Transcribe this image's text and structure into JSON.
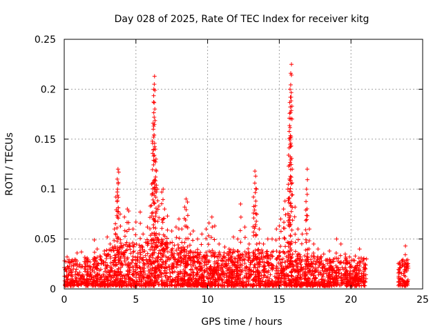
{
  "chart_data": {
    "type": "scatter",
    "title": "Day 028 of 2025, Rate Of TEC Index for receiver kitg",
    "xlabel": "GPS time / hours",
    "ylabel": "ROTI / TECUs",
    "xlim": [
      0,
      25
    ],
    "ylim": [
      0,
      0.25
    ],
    "xticks": [
      "0",
      "5",
      "10",
      "15",
      "20",
      "25"
    ],
    "yticks": [
      "0",
      "0.05",
      "0.1",
      "0.15",
      "0.2",
      "0.25"
    ],
    "grid": true,
    "marker": "+",
    "color": "#ff0000",
    "coverage": [
      [
        0,
        21.1
      ],
      [
        23.3,
        24.0
      ]
    ],
    "series": [
      {
        "name": "ROTI",
        "points": [
          [
            0.2,
            0.032
          ],
          [
            0.5,
            0.028
          ],
          [
            0.9,
            0.036
          ],
          [
            1.2,
            0.037
          ],
          [
            1.6,
            0.031
          ],
          [
            2.1,
            0.049
          ],
          [
            2.3,
            0.04
          ],
          [
            2.8,
            0.038
          ],
          [
            3.0,
            0.052
          ],
          [
            3.2,
            0.045
          ],
          [
            3.5,
            0.06
          ],
          [
            3.6,
            0.092
          ],
          [
            3.7,
            0.11
          ],
          [
            3.75,
            0.12
          ],
          [
            3.8,
            0.117
          ],
          [
            3.72,
            0.1
          ],
          [
            3.9,
            0.075
          ],
          [
            4.2,
            0.072
          ],
          [
            4.4,
            0.08
          ],
          [
            4.5,
            0.078
          ],
          [
            4.8,
            0.06
          ],
          [
            5.0,
            0.067
          ],
          [
            5.3,
            0.077
          ],
          [
            5.5,
            0.055
          ],
          [
            5.8,
            0.062
          ],
          [
            6.0,
            0.083
          ],
          [
            6.1,
            0.105
          ],
          [
            6.15,
            0.148
          ],
          [
            6.2,
            0.166
          ],
          [
            6.25,
            0.2
          ],
          [
            6.3,
            0.213
          ],
          [
            6.28,
            0.205
          ],
          [
            6.35,
            0.14
          ],
          [
            6.4,
            0.13
          ],
          [
            6.42,
            0.118
          ],
          [
            6.5,
            0.1
          ],
          [
            6.6,
            0.083
          ],
          [
            6.8,
            0.097
          ],
          [
            6.9,
            0.1
          ],
          [
            7.0,
            0.08
          ],
          [
            7.2,
            0.073
          ],
          [
            7.5,
            0.058
          ],
          [
            7.8,
            0.062
          ],
          [
            8.0,
            0.07
          ],
          [
            8.2,
            0.06
          ],
          [
            8.4,
            0.082
          ],
          [
            8.5,
            0.09
          ],
          [
            8.6,
            0.087
          ],
          [
            8.8,
            0.055
          ],
          [
            9.0,
            0.058
          ],
          [
            9.3,
            0.05
          ],
          [
            9.6,
            0.055
          ],
          [
            9.9,
            0.06
          ],
          [
            10.1,
            0.066
          ],
          [
            10.3,
            0.072
          ],
          [
            10.5,
            0.063
          ],
          [
            10.8,
            0.045
          ],
          [
            11.2,
            0.042
          ],
          [
            11.5,
            0.04
          ],
          [
            11.8,
            0.052
          ],
          [
            12.1,
            0.05
          ],
          [
            12.3,
            0.085
          ],
          [
            12.6,
            0.062
          ],
          [
            12.9,
            0.045
          ],
          [
            13.2,
            0.092
          ],
          [
            13.3,
            0.118
          ],
          [
            13.35,
            0.113
          ],
          [
            13.4,
            0.1
          ],
          [
            13.2,
            0.076
          ],
          [
            13.6,
            0.06
          ],
          [
            13.9,
            0.045
          ],
          [
            14.2,
            0.05
          ],
          [
            14.5,
            0.05
          ],
          [
            14.8,
            0.06
          ],
          [
            15.0,
            0.063
          ],
          [
            15.1,
            0.07
          ],
          [
            15.3,
            0.08
          ],
          [
            15.4,
            0.088
          ],
          [
            15.6,
            0.1
          ],
          [
            15.65,
            0.134
          ],
          [
            15.7,
            0.171
          ],
          [
            15.75,
            0.2
          ],
          [
            15.8,
            0.216
          ],
          [
            15.85,
            0.225
          ],
          [
            15.78,
            0.192
          ],
          [
            15.9,
            0.12
          ],
          [
            16.1,
            0.082
          ],
          [
            16.3,
            0.06
          ],
          [
            16.6,
            0.055
          ],
          [
            16.85,
            0.079
          ],
          [
            16.9,
            0.1
          ],
          [
            16.95,
            0.12
          ],
          [
            17.1,
            0.06
          ],
          [
            17.4,
            0.045
          ],
          [
            17.7,
            0.04
          ],
          [
            18.1,
            0.035
          ],
          [
            18.5,
            0.038
          ],
          [
            19.0,
            0.05
          ],
          [
            19.3,
            0.045
          ],
          [
            19.6,
            0.035
          ],
          [
            19.9,
            0.032
          ],
          [
            20.3,
            0.033
          ],
          [
            20.6,
            0.04
          ],
          [
            20.9,
            0.025
          ],
          [
            23.5,
            0.022
          ],
          [
            23.8,
            0.043
          ],
          [
            23.9,
            0.018
          ]
        ]
      }
    ]
  }
}
